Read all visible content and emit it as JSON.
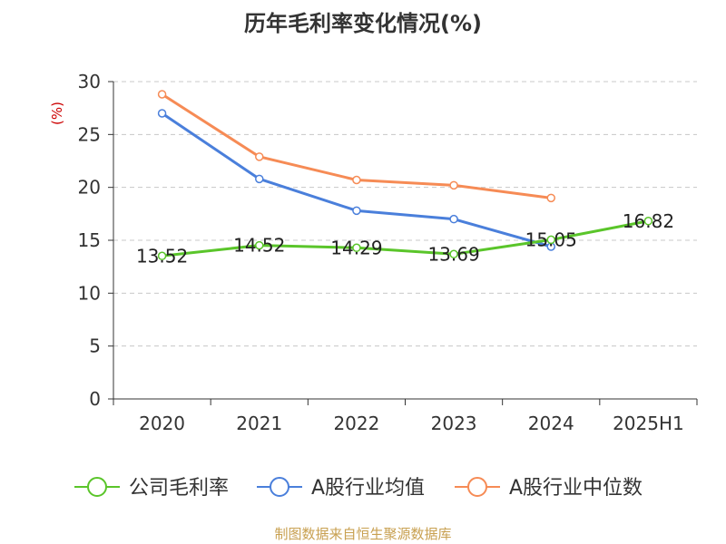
{
  "chart_data": {
    "type": "line",
    "title": "历年毛利率变化情况(%)",
    "ylabel": "(%)",
    "xlabel": "",
    "categories": [
      "2020",
      "2021",
      "2022",
      "2023",
      "2024",
      "2025H1"
    ],
    "ylim": [
      0,
      30
    ],
    "yticks": [
      0,
      5,
      10,
      15,
      20,
      25,
      30
    ],
    "grid": true,
    "legend_position": "bottom",
    "series": [
      {
        "name": "公司毛利率",
        "color": "#5ac52a",
        "values": [
          13.52,
          14.52,
          14.29,
          13.69,
          15.05,
          16.82
        ],
        "labels": [
          "13.52",
          "14.52",
          "14.29",
          "13.69",
          "15.05",
          "16.82"
        ]
      },
      {
        "name": "A股行业均值",
        "color": "#4a7fdb",
        "values": [
          27.0,
          20.8,
          17.8,
          17.0,
          14.4,
          null
        ]
      },
      {
        "name": "A股行业中位数",
        "color": "#f68b55",
        "values": [
          28.8,
          22.9,
          20.7,
          20.2,
          19.0,
          null
        ]
      }
    ],
    "source": "制图数据来自恒生聚源数据库"
  }
}
